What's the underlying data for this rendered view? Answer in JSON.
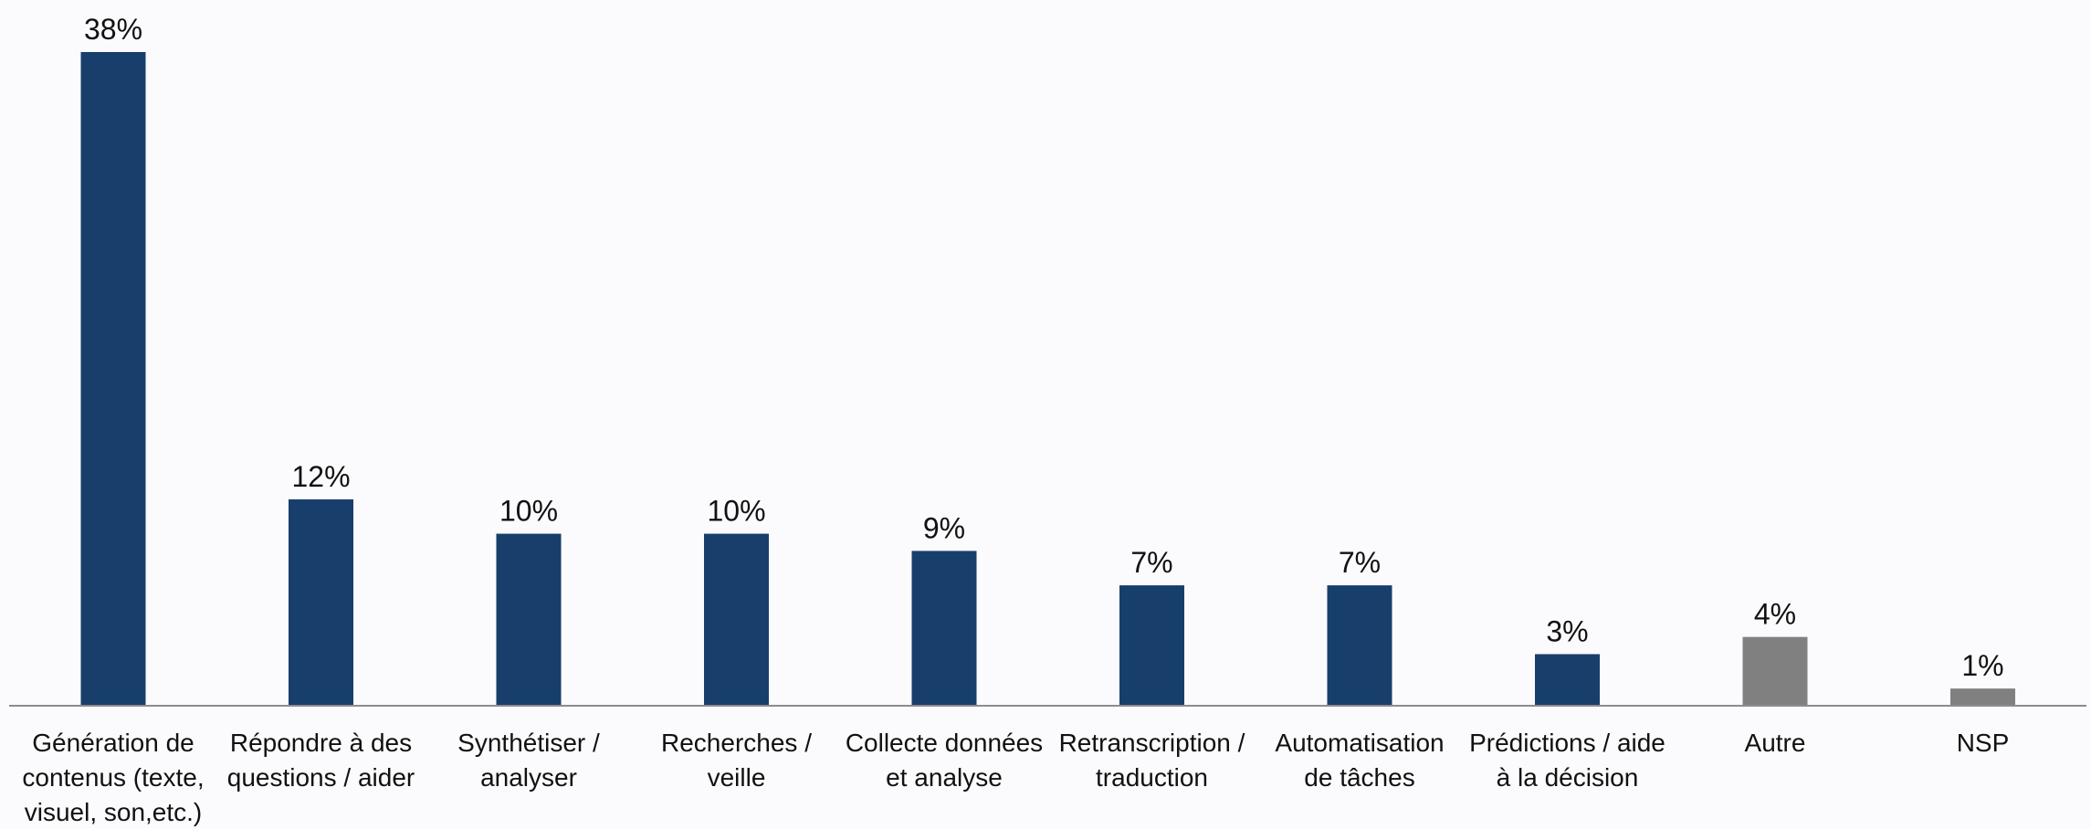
{
  "chart_data": {
    "type": "bar",
    "title": "",
    "xlabel": "",
    "ylabel": "",
    "ylim": [
      0,
      38
    ],
    "grid": false,
    "legend": "none",
    "categories": [
      [
        "Génération de",
        "contenus (texte,",
        "visuel, son,etc.)"
      ],
      [
        "Répondre à des",
        "questions / aider"
      ],
      [
        "Synthétiser /",
        "analyser"
      ],
      [
        "Recherches /",
        "veille"
      ],
      [
        "Collecte données",
        "et analyse"
      ],
      [
        "Retranscription /",
        "traduction"
      ],
      [
        "Automatisation",
        "de tâches"
      ],
      [
        "Prédictions / aide",
        "à la décision"
      ],
      [
        "Autre"
      ],
      [
        "NSP"
      ]
    ],
    "values": [
      38,
      12,
      10,
      10,
      9,
      7,
      7,
      3,
      4,
      1
    ],
    "value_labels": [
      "38%",
      "12%",
      "10%",
      "10%",
      "9%",
      "7%",
      "7%",
      "3%",
      "4%",
      "1%"
    ],
    "bar_colors": [
      "#183f6b",
      "#183f6b",
      "#183f6b",
      "#183f6b",
      "#183f6b",
      "#183f6b",
      "#183f6b",
      "#183f6b",
      "#808080",
      "#808080"
    ],
    "axis_color": "#8c8c8c"
  }
}
